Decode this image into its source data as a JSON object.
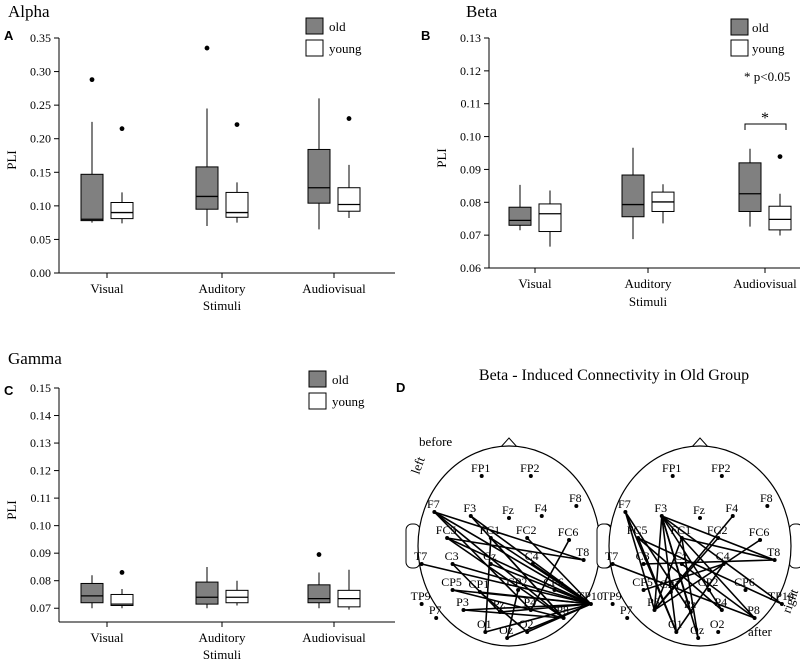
{
  "chart_data": [
    {
      "type": "box",
      "panel_letter": "A",
      "title": "Alpha",
      "xlabel": "Stimuli",
      "ylabel": "PLI",
      "ylim": [
        0,
        0.35
      ],
      "yticks": [
        "0.00",
        "0.05",
        "0.10",
        "0.15",
        "0.20",
        "0.25",
        "0.30",
        "0.35"
      ],
      "yticks_values": [
        0,
        0.05,
        0.1,
        0.15,
        0.2,
        0.25,
        0.3,
        0.35
      ],
      "categories": [
        "Visual",
        "Auditory",
        "Audiovisual"
      ],
      "legend": [
        "old",
        "young"
      ],
      "series": [
        {
          "name": "old",
          "boxes": [
            {
              "low": 0.075,
              "q1": 0.078,
              "median": 0.08,
              "q3": 0.147,
              "high": 0.225,
              "outliers": [
                0.288
              ]
            },
            {
              "low": 0.07,
              "q1": 0.095,
              "median": 0.114,
              "q3": 0.158,
              "high": 0.245,
              "outliers": [
                0.335
              ]
            },
            {
              "low": 0.065,
              "q1": 0.104,
              "median": 0.127,
              "q3": 0.184,
              "high": 0.26,
              "outliers": []
            }
          ]
        },
        {
          "name": "young",
          "boxes": [
            {
              "low": 0.074,
              "q1": 0.081,
              "median": 0.09,
              "q3": 0.105,
              "high": 0.12,
              "outliers": [
                0.215
              ]
            },
            {
              "low": 0.075,
              "q1": 0.083,
              "median": 0.09,
              "q3": 0.12,
              "high": 0.135,
              "outliers": [
                0.221
              ]
            },
            {
              "low": 0.082,
              "q1": 0.092,
              "median": 0.102,
              "q3": 0.127,
              "high": 0.161,
              "outliers": [
                0.23
              ]
            }
          ]
        }
      ]
    },
    {
      "type": "box",
      "panel_letter": "B",
      "title": "Beta",
      "xlabel": "Stimuli",
      "ylabel": "PLI",
      "ylim": [
        0.06,
        0.13
      ],
      "yticks": [
        "0.06",
        "0.07",
        "0.08",
        "0.09",
        "0.10",
        "0.11",
        "0.12",
        "0.13"
      ],
      "yticks_values": [
        0.06,
        0.07,
        0.08,
        0.09,
        0.1,
        0.11,
        0.12,
        0.13
      ],
      "categories": [
        "Visual",
        "Auditory",
        "Audiovisual"
      ],
      "legend": [
        "old",
        "young"
      ],
      "annotation": "* p<0.05",
      "significance": {
        "category": "Audiovisual",
        "marker": "*"
      },
      "series": [
        {
          "name": "old",
          "boxes": [
            {
              "low": 0.0715,
              "q1": 0.073,
              "median": 0.0745,
              "q3": 0.0785,
              "high": 0.0853,
              "outliers": []
            },
            {
              "low": 0.0688,
              "q1": 0.0756,
              "median": 0.0793,
              "q3": 0.0883,
              "high": 0.0966,
              "outliers": []
            },
            {
              "low": 0.0726,
              "q1": 0.0772,
              "median": 0.0826,
              "q3": 0.092,
              "high": 0.0963,
              "outliers": []
            }
          ]
        },
        {
          "name": "young",
          "boxes": [
            {
              "low": 0.0665,
              "q1": 0.0711,
              "median": 0.0765,
              "q3": 0.0795,
              "high": 0.0836,
              "outliers": []
            },
            {
              "low": 0.0736,
              "q1": 0.0772,
              "median": 0.0801,
              "q3": 0.0831,
              "high": 0.0855,
              "outliers": []
            },
            {
              "low": 0.0699,
              "q1": 0.0716,
              "median": 0.0748,
              "q3": 0.0788,
              "high": 0.0826,
              "outliers": [
                0.0939
              ]
            }
          ]
        }
      ]
    },
    {
      "type": "box",
      "panel_letter": "C",
      "title": "Gamma",
      "xlabel": "Stimuli",
      "ylabel": "PLI",
      "ylim": [
        0.065,
        0.15
      ],
      "yticks": [
        "0.07",
        "0.08",
        "0.09",
        "0.10",
        "0.11",
        "0.12",
        "0.13",
        "0.14",
        "0.15"
      ],
      "yticks_values": [
        0.07,
        0.08,
        0.09,
        0.1,
        0.11,
        0.12,
        0.13,
        0.14,
        0.15
      ],
      "categories": [
        "Visual",
        "Auditory",
        "Audiovisual"
      ],
      "legend": [
        "old",
        "young"
      ],
      "series": [
        {
          "name": "old",
          "boxes": [
            {
              "low": 0.07,
              "q1": 0.072,
              "median": 0.0745,
              "q3": 0.079,
              "high": 0.082,
              "outliers": []
            },
            {
              "low": 0.07,
              "q1": 0.0715,
              "median": 0.074,
              "q3": 0.0795,
              "high": 0.085,
              "outliers": []
            },
            {
              "low": 0.07,
              "q1": 0.072,
              "median": 0.0735,
              "q3": 0.0785,
              "high": 0.083,
              "outliers": [
                0.0895
              ]
            }
          ]
        },
        {
          "name": "young",
          "boxes": [
            {
              "low": 0.07,
              "q1": 0.071,
              "median": 0.0715,
              "q3": 0.075,
              "high": 0.077,
              "outliers": [
                0.083
              ]
            },
            {
              "low": 0.071,
              "q1": 0.072,
              "median": 0.074,
              "q3": 0.0765,
              "high": 0.08,
              "outliers": []
            },
            {
              "low": 0.0695,
              "q1": 0.0705,
              "median": 0.0735,
              "q3": 0.0765,
              "high": 0.084,
              "outliers": []
            }
          ]
        }
      ]
    }
  ],
  "connectivity": {
    "panel_letter": "D",
    "title": "Beta - Induced Connectivity in Old Group",
    "labels": {
      "before": "before",
      "left": "left",
      "after": "after",
      "right": "right"
    },
    "electrodes": [
      "FP1",
      "FP2",
      "F7",
      "F3",
      "Fz",
      "F4",
      "F8",
      "FC5",
      "FC1",
      "FC2",
      "FC6",
      "T7",
      "C3",
      "Cz",
      "C4",
      "T8",
      "CP5",
      "CP1",
      "CP2",
      "CP6",
      "TP9",
      "TP10",
      "P7",
      "P3",
      "Pz",
      "P4",
      "P8",
      "O1",
      "Oz",
      "O2"
    ],
    "heads": [
      {
        "name": "before",
        "connections": [
          [
            "F7",
            "TP10"
          ],
          [
            "F7",
            "P8"
          ],
          [
            "F7",
            "T8"
          ],
          [
            "F7",
            "P4"
          ],
          [
            "F3",
            "TP10"
          ],
          [
            "F3",
            "P8"
          ],
          [
            "FC5",
            "TP10"
          ],
          [
            "FC5",
            "P8"
          ],
          [
            "FC5",
            "T8"
          ],
          [
            "FC1",
            "TP10"
          ],
          [
            "FC1",
            "P8"
          ],
          [
            "T7",
            "TP10"
          ],
          [
            "C3",
            "TP10"
          ],
          [
            "CP5",
            "TP10"
          ],
          [
            "CP5",
            "P8"
          ],
          [
            "CP1",
            "TP10"
          ],
          [
            "P3",
            "TP10"
          ],
          [
            "P3",
            "P8"
          ],
          [
            "Pz",
            "TP10"
          ],
          [
            "O1",
            "TP10"
          ],
          [
            "Oz",
            "TP10"
          ],
          [
            "O2",
            "TP10"
          ],
          [
            "Cz",
            "TP10"
          ],
          [
            "FC2",
            "TP10"
          ],
          [
            "C4",
            "TP10"
          ],
          [
            "CP6",
            "TP10"
          ],
          [
            "O1",
            "FC1"
          ],
          [
            "O2",
            "CP1"
          ],
          [
            "Oz",
            "CP2"
          ],
          [
            "FC6",
            "P4"
          ],
          [
            "C3",
            "Pz"
          ]
        ]
      },
      {
        "name": "after",
        "connections": [
          [
            "F3",
            "P3"
          ],
          [
            "F3",
            "O1"
          ],
          [
            "F3",
            "Oz"
          ],
          [
            "F3",
            "Pz"
          ],
          [
            "F3",
            "P4"
          ],
          [
            "F3",
            "P8"
          ],
          [
            "F3",
            "TP10"
          ],
          [
            "F3",
            "T8"
          ],
          [
            "F7",
            "P3"
          ],
          [
            "F7",
            "O1"
          ],
          [
            "F7",
            "Pz"
          ],
          [
            "FC5",
            "P4"
          ],
          [
            "FC5",
            "TP10"
          ],
          [
            "FC1",
            "T8"
          ],
          [
            "FC1",
            "P3"
          ],
          [
            "FC1",
            "Oz"
          ],
          [
            "T7",
            "P8"
          ],
          [
            "C3",
            "T8"
          ],
          [
            "CP5",
            "C4"
          ],
          [
            "FC5",
            "O1"
          ],
          [
            "FC2",
            "P3"
          ],
          [
            "Cz",
            "P8"
          ],
          [
            "F4",
            "P3"
          ],
          [
            "FC6",
            "P3"
          ],
          [
            "C4",
            "O1"
          ]
        ]
      }
    ]
  }
}
